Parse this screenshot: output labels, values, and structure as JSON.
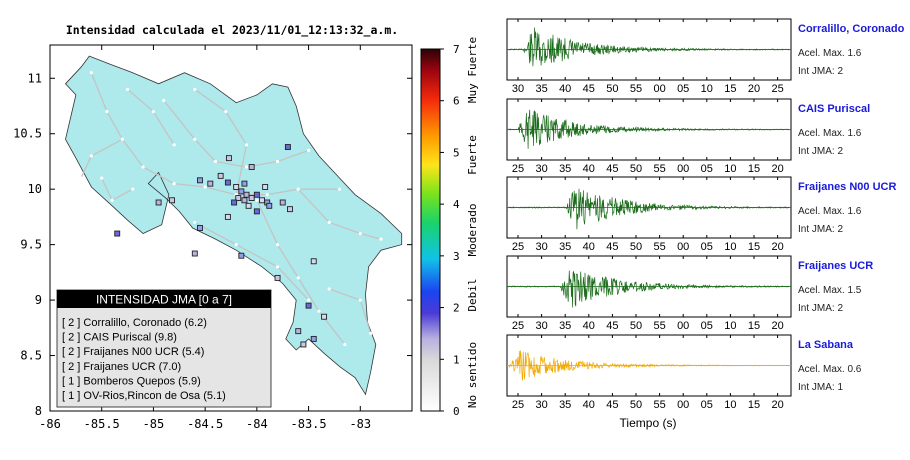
{
  "map": {
    "title": "Intensidad calculada el 2023/11/01_12:13:32_a.m.",
    "x_ticks": [
      "-86",
      "-85.5",
      "-85",
      "-84.5",
      "-84",
      "-83.5",
      "-83"
    ],
    "y_ticks": [
      "11",
      "10.5",
      "10",
      "9.5",
      "9",
      "8.5",
      "8"
    ],
    "x_values": [
      -86,
      -85.5,
      -85,
      -84.5,
      -84,
      -83.5,
      -83
    ],
    "y_values": [
      11,
      10.5,
      10,
      9.5,
      9,
      8.5,
      8
    ],
    "xlim": [
      -86,
      -82.5
    ],
    "ylim": [
      8,
      11.3
    ],
    "colors": {
      "land": "#aee9ec",
      "sea": "#ffffff",
      "roads": "#c4c4c4"
    },
    "stations": [
      {
        "lon": -84.55,
        "lat": 10.08
      },
      {
        "lon": -84.45,
        "lat": 10.05
      },
      {
        "lon": -84.35,
        "lat": 10.12
      },
      {
        "lon": -84.28,
        "lat": 10.06
      },
      {
        "lon": -84.2,
        "lat": 10.02
      },
      {
        "lon": -84.15,
        "lat": 9.98
      },
      {
        "lon": -84.1,
        "lat": 9.95
      },
      {
        "lon": -84.05,
        "lat": 9.92
      },
      {
        "lon": -84.0,
        "lat": 9.95
      },
      {
        "lon": -83.95,
        "lat": 9.9
      },
      {
        "lon": -83.9,
        "lat": 9.88
      },
      {
        "lon": -84.12,
        "lat": 9.9
      },
      {
        "lon": -84.18,
        "lat": 9.92
      },
      {
        "lon": -84.22,
        "lat": 9.88
      },
      {
        "lon": -84.08,
        "lat": 9.85
      },
      {
        "lon": -83.88,
        "lat": 9.85
      },
      {
        "lon": -83.75,
        "lat": 9.88
      },
      {
        "lon": -83.68,
        "lat": 9.82
      },
      {
        "lon": -84.0,
        "lat": 9.8
      },
      {
        "lon": -83.92,
        "lat": 10.02
      },
      {
        "lon": -84.12,
        "lat": 10.05
      },
      {
        "lon": -84.05,
        "lat": 10.2
      },
      {
        "lon": -84.27,
        "lat": 10.28
      },
      {
        "lon": -83.7,
        "lat": 10.38
      },
      {
        "lon": -84.28,
        "lat": 9.75
      },
      {
        "lon": -84.55,
        "lat": 9.65
      },
      {
        "lon": -84.95,
        "lat": 9.88
      },
      {
        "lon": -84.82,
        "lat": 9.9
      },
      {
        "lon": -85.35,
        "lat": 9.6
      },
      {
        "lon": -83.45,
        "lat": 9.35
      },
      {
        "lon": -84.15,
        "lat": 9.4
      },
      {
        "lon": -84.6,
        "lat": 9.42
      },
      {
        "lon": -83.8,
        "lat": 9.2
      },
      {
        "lon": -83.5,
        "lat": 8.95
      },
      {
        "lon": -83.35,
        "lat": 8.85
      },
      {
        "lon": -83.45,
        "lat": 8.65
      },
      {
        "lon": -83.6,
        "lat": 8.72
      },
      {
        "lon": -83.55,
        "lat": 8.6
      }
    ]
  },
  "colorbar": {
    "ticks": [
      "7",
      "6",
      "5",
      "4",
      "3",
      "2",
      "1",
      "0"
    ],
    "labels": [
      "Muy Fuerte",
      "Fuerte",
      "Moderado",
      "Debil",
      "No sentido"
    ]
  },
  "legend": {
    "title": "INTENSIDAD JMA [0 a 7]",
    "items": [
      "[ 2 ] Corralillo, Coronado (6.2)",
      "[ 2 ] CAIS Puriscal (9.8)",
      "[ 2 ] Fraijanes N00 UCR (5.4)",
      "[ 2 ] Fraijanes UCR (7.0)",
      "[ 1 ] Bomberos Quepos (5.9)",
      "[ 1 ] OV-Rios,Rincon de Osa (5.1)"
    ]
  },
  "chart_data": [
    {
      "type": "line",
      "name": "Corralillo, Coronado",
      "accel_label": "Acel. Max. 1.6",
      "jma_label": "Int JMA: 2",
      "color": "#1a6b1a",
      "x_ticks": [
        "30",
        "35",
        "40",
        "45",
        "50",
        "55",
        "00",
        "05",
        "10",
        "15",
        "20",
        "25"
      ],
      "onset": 0.05,
      "amp": 1.0
    },
    {
      "type": "line",
      "name": "CAIS Puriscal",
      "accel_label": "Acel. Max. 1.6",
      "jma_label": "Int JMA: 2",
      "color": "#1a6b1a",
      "x_ticks": [
        "25",
        "30",
        "35",
        "40",
        "45",
        "50",
        "55",
        "00",
        "05",
        "10",
        "15",
        "20"
      ],
      "onset": 0.03,
      "amp": 0.95
    },
    {
      "type": "line",
      "name": "Fraijanes N00 UCR",
      "accel_label": "Acel. Max. 1.6",
      "jma_label": "Int JMA: 2",
      "color": "#1a6b1a",
      "x_ticks": [
        "25",
        "30",
        "35",
        "40",
        "45",
        "50",
        "55",
        "00",
        "05",
        "10",
        "15",
        "20"
      ],
      "onset": 0.2,
      "amp": 1.0
    },
    {
      "type": "line",
      "name": "Fraijanes UCR",
      "accel_label": "Acel. Max. 1.5",
      "jma_label": "Int JMA: 2",
      "color": "#1a6b1a",
      "x_ticks": [
        "25",
        "30",
        "35",
        "40",
        "45",
        "50",
        "55",
        "00",
        "05",
        "10",
        "15",
        "20"
      ],
      "onset": 0.18,
      "amp": 1.0
    },
    {
      "type": "line",
      "name": "La Sabana",
      "accel_label": "Acel. Max. 0.6",
      "jma_label": "Int JMA: 1",
      "color": "#f2a900",
      "x_ticks": [
        "25",
        "30",
        "35",
        "40",
        "45",
        "50",
        "55",
        "00",
        "05",
        "10",
        "15",
        "20"
      ],
      "onset": 0.0,
      "amp": 0.7
    }
  ],
  "waveform_xlabel": "Tiempo (s)"
}
